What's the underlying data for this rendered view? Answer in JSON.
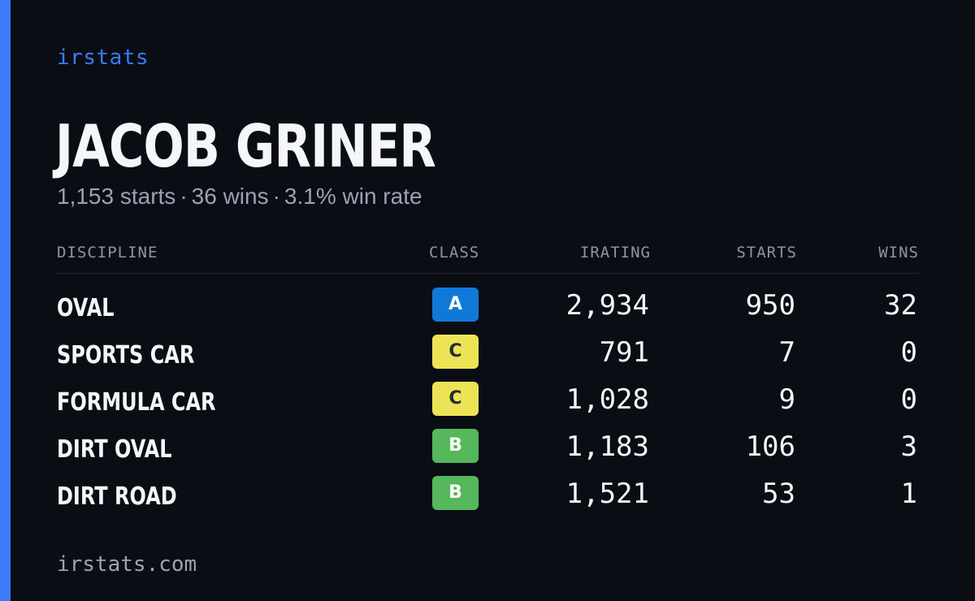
{
  "brand": "irstats",
  "driver": {
    "name": "JACOB GRINER",
    "summary": {
      "starts": "1,153 starts",
      "wins": "36 wins",
      "win_rate": "3.1% win rate",
      "separator": "·"
    }
  },
  "table": {
    "headers": {
      "discipline": "DISCIPLINE",
      "class": "CLASS",
      "irating": "IRATING",
      "starts": "STARTS",
      "wins": "WINS"
    },
    "rows": [
      {
        "discipline": "OVAL",
        "class": "A",
        "irating": "2,934",
        "starts": "950",
        "wins": "32"
      },
      {
        "discipline": "SPORTS CAR",
        "class": "C",
        "irating": "791",
        "starts": "7",
        "wins": "0"
      },
      {
        "discipline": "FORMULA CAR",
        "class": "C",
        "irating": "1,028",
        "starts": "9",
        "wins": "0"
      },
      {
        "discipline": "DIRT OVAL",
        "class": "B",
        "irating": "1,183",
        "starts": "106",
        "wins": "3"
      },
      {
        "discipline": "DIRT ROAD",
        "class": "B",
        "irating": "1,521",
        "starts": "53",
        "wins": "1"
      }
    ]
  },
  "class_colors": {
    "A": "#0f79d8",
    "B": "#55b85a",
    "C": "#ece455"
  },
  "accent_color": "#3b7bf6",
  "footer": "irstats.com"
}
